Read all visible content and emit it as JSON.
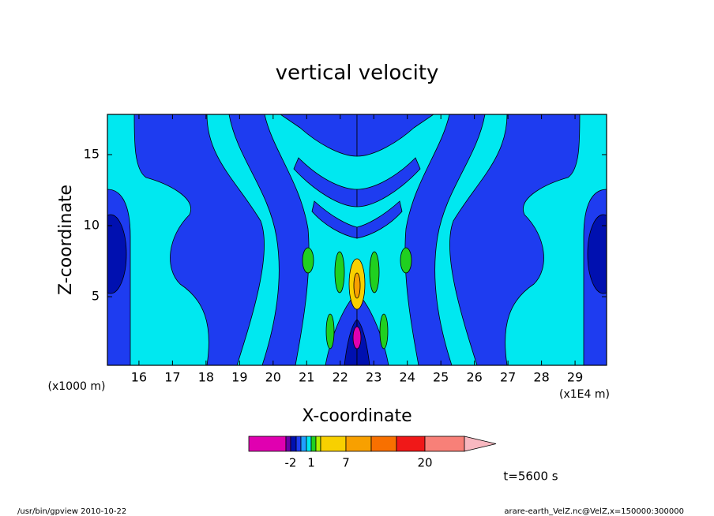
{
  "chart_data": {
    "type": "contour",
    "title": "vertical velocity",
    "x_label": "X-coordinate",
    "y_label": "Z-coordinate",
    "x_unit": "(x1E4 m)",
    "y_unit": "(x1000 m)",
    "xlim": [
      15.06,
      29.94
    ],
    "ylim": [
      0.17,
      17.83
    ],
    "xticks": [
      16,
      17,
      18,
      19,
      20,
      21,
      22,
      23,
      24,
      25,
      26,
      27,
      28,
      29
    ],
    "yticks": [
      5,
      10,
      15
    ],
    "colorbar": {
      "levels": [
        -5,
        -2,
        -1,
        -0.5,
        0.5,
        1,
        2,
        4,
        7,
        10,
        15,
        20,
        30
      ],
      "colors": [
        "#e000b0",
        "#6a00a8",
        "#0010b0",
        "#1e3cf0",
        "#20a0ff",
        "#00e8f0",
        "#20d020",
        "#b0f000",
        "#f8d000",
        "#f8a000",
        "#f87000",
        "#f01818",
        "#f88078",
        "#f8b8c0"
      ],
      "ticks": [
        -2,
        1,
        7,
        20
      ]
    },
    "annotation": "t=5600 s"
  },
  "footer": {
    "left": "/usr/bin/gpview  2010-10-22",
    "right": "arare-earth_VelZ.nc@VelZ,x=150000:300000"
  }
}
